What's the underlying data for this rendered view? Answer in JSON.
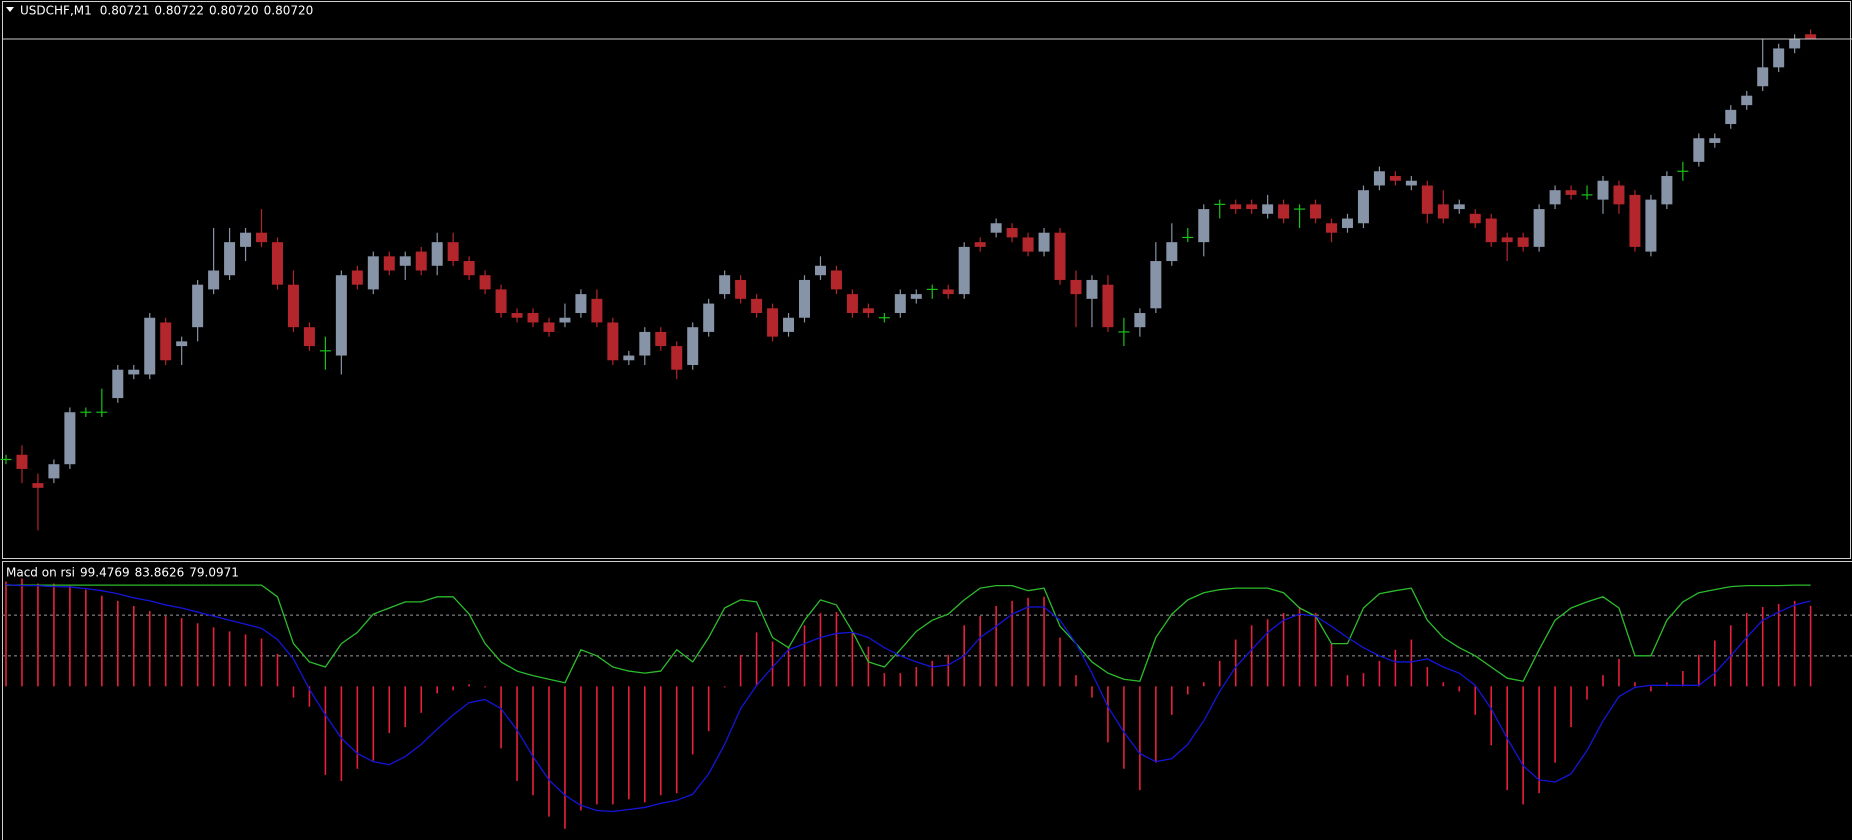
{
  "chart_data": [
    {
      "type": "candlestick",
      "title": "USDCHF,M1",
      "header_values": [
        "0.80721",
        "0.80722",
        "0.80720",
        "0.80720"
      ],
      "open": [
        0.80631,
        0.80632,
        0.80626,
        0.80627,
        0.8063,
        0.80641,
        0.80641,
        0.80644,
        0.80649,
        0.80649,
        0.8066,
        0.80655,
        0.80659,
        0.80667,
        0.8067,
        0.80676,
        0.80679,
        0.80677,
        0.80668,
        0.80659,
        0.80654,
        0.80653,
        0.80671,
        0.80667,
        0.80674,
        0.80672,
        0.80675,
        0.80672,
        0.80677,
        0.80673,
        0.8067,
        0.80667,
        0.80662,
        0.80662,
        0.8066,
        0.8066,
        0.80662,
        0.80665,
        0.8066,
        0.80652,
        0.80653,
        0.80658,
        0.80655,
        0.80651,
        0.80658,
        0.80666,
        0.80669,
        0.80665,
        0.80663,
        0.80658,
        0.80661,
        0.8067,
        0.80671,
        0.80666,
        0.80663,
        0.80661,
        0.80662,
        0.80665,
        0.80667,
        0.80667,
        0.80666,
        0.80677,
        0.80679,
        0.8068,
        0.80678,
        0.80675,
        0.80679,
        0.80669,
        0.80665,
        0.80668,
        0.80658,
        0.80659,
        0.80663,
        0.80673,
        0.80678,
        0.80677,
        0.80685,
        0.80685,
        0.80685,
        0.80683,
        0.80685,
        0.80684,
        0.80685,
        0.80681,
        0.8068,
        0.80681,
        0.80689,
        0.80691,
        0.80689,
        0.80689,
        0.80685,
        0.80684,
        0.80683,
        0.80682,
        0.80678,
        0.80678,
        0.80676,
        0.80685,
        0.80688,
        0.80687,
        0.80686,
        0.80689,
        0.80687,
        0.80675,
        0.80685,
        0.80692,
        0.80694,
        0.80698,
        0.80702,
        0.80706,
        0.8071,
        0.80714,
        0.80718,
        0.80721
      ],
      "high": [
        0.80632,
        0.80634,
        0.80628,
        0.80631,
        0.80642,
        0.80642,
        0.80646,
        0.80651,
        0.80651,
        0.80662,
        0.80661,
        0.80657,
        0.80669,
        0.8068,
        0.8068,
        0.8068,
        0.80684,
        0.80678,
        0.80671,
        0.8066,
        0.80657,
        0.80671,
        0.80672,
        0.80675,
        0.80675,
        0.80675,
        0.80676,
        0.80679,
        0.80679,
        0.80674,
        0.80671,
        0.80668,
        0.80663,
        0.80663,
        0.80661,
        0.80664,
        0.80667,
        0.80667,
        0.80661,
        0.80654,
        0.80659,
        0.80659,
        0.80656,
        0.8066,
        0.80665,
        0.80671,
        0.8067,
        0.80666,
        0.80664,
        0.80662,
        0.8067,
        0.80674,
        0.80672,
        0.80667,
        0.80664,
        0.80662,
        0.80667,
        0.80667,
        0.80668,
        0.80668,
        0.80677,
        0.80678,
        0.80682,
        0.80681,
        0.80679,
        0.8068,
        0.8068,
        0.80671,
        0.8067,
        0.8067,
        0.80661,
        0.80663,
        0.80677,
        0.80681,
        0.8068,
        0.80685,
        0.80686,
        0.80686,
        0.80686,
        0.80687,
        0.80686,
        0.80685,
        0.80686,
        0.80682,
        0.80683,
        0.80689,
        0.80693,
        0.80692,
        0.80691,
        0.8069,
        0.80688,
        0.80686,
        0.80684,
        0.80683,
        0.80679,
        0.80679,
        0.80685,
        0.80689,
        0.80689,
        0.80689,
        0.80691,
        0.8069,
        0.80688,
        0.80687,
        0.80692,
        0.80694,
        0.807,
        0.807,
        0.80706,
        0.80709,
        0.8072,
        0.80719,
        0.80721,
        0.80722
      ],
      "low": [
        0.8063,
        0.80626,
        0.80616,
        0.80626,
        0.80629,
        0.8064,
        0.8064,
        0.80643,
        0.80648,
        0.80648,
        0.80651,
        0.80651,
        0.80656,
        0.80666,
        0.80669,
        0.80673,
        0.80676,
        0.80667,
        0.80658,
        0.80654,
        0.8065,
        0.80649,
        0.80667,
        0.80666,
        0.8067,
        0.80669,
        0.8067,
        0.8067,
        0.80672,
        0.80669,
        0.80666,
        0.80661,
        0.8066,
        0.80659,
        0.80657,
        0.80659,
        0.80661,
        0.80659,
        0.80651,
        0.80651,
        0.80651,
        0.80654,
        0.80648,
        0.8065,
        0.80657,
        0.80665,
        0.80664,
        0.80661,
        0.80656,
        0.80657,
        0.8066,
        0.80669,
        0.80666,
        0.80661,
        0.80661,
        0.8066,
        0.80661,
        0.80664,
        0.80665,
        0.80665,
        0.80665,
        0.80675,
        0.80678,
        0.80677,
        0.80674,
        0.80674,
        0.80668,
        0.80659,
        0.80659,
        0.80658,
        0.80655,
        0.80657,
        0.80662,
        0.80672,
        0.80677,
        0.80674,
        0.80682,
        0.80683,
        0.80683,
        0.80682,
        0.80681,
        0.8068,
        0.80681,
        0.80677,
        0.80679,
        0.8068,
        0.80688,
        0.80689,
        0.80688,
        0.80681,
        0.80681,
        0.80683,
        0.8068,
        0.80676,
        0.80673,
        0.80675,
        0.80675,
        0.80684,
        0.80686,
        0.80686,
        0.80683,
        0.80683,
        0.80675,
        0.80674,
        0.80684,
        0.8069,
        0.80693,
        0.80697,
        0.80701,
        0.80705,
        0.80709,
        0.80713,
        0.80717,
        0.8072
      ],
      "close": [
        0.80631,
        0.80629,
        0.80625,
        0.8063,
        0.80641,
        0.80641,
        0.80641,
        0.8065,
        0.8065,
        0.80661,
        0.80652,
        0.80656,
        0.80668,
        0.80671,
        0.80677,
        0.80679,
        0.80677,
        0.80668,
        0.80659,
        0.80655,
        0.80654,
        0.8067,
        0.80668,
        0.80674,
        0.80671,
        0.80674,
        0.80671,
        0.80677,
        0.80673,
        0.8067,
        0.80667,
        0.80662,
        0.80661,
        0.8066,
        0.80658,
        0.80661,
        0.80666,
        0.8066,
        0.80652,
        0.80653,
        0.80658,
        0.80655,
        0.8065,
        0.80659,
        0.80664,
        0.8067,
        0.80665,
        0.80662,
        0.80657,
        0.80661,
        0.80669,
        0.80672,
        0.80667,
        0.80662,
        0.80662,
        0.80661,
        0.80666,
        0.80666,
        0.80667,
        0.80666,
        0.80676,
        0.80676,
        0.80681,
        0.80678,
        0.80675,
        0.80679,
        0.80669,
        0.80666,
        0.80669,
        0.80659,
        0.80658,
        0.80662,
        0.80673,
        0.80677,
        0.80678,
        0.80684,
        0.80685,
        0.80684,
        0.80684,
        0.80685,
        0.80682,
        0.80684,
        0.80682,
        0.80679,
        0.80682,
        0.80688,
        0.80692,
        0.8069,
        0.8069,
        0.80683,
        0.80682,
        0.80685,
        0.80681,
        0.80677,
        0.80677,
        0.80676,
        0.80684,
        0.80688,
        0.80687,
        0.80687,
        0.8069,
        0.80685,
        0.80676,
        0.80686,
        0.80691,
        0.80692,
        0.80699,
        0.80699,
        0.80705,
        0.80708,
        0.80714,
        0.80718,
        0.8072,
        0.8072
      ],
      "ylim": [
        0.8061,
        0.80728
      ],
      "colors": {
        "up": "#8793a6",
        "down": "#b3262b",
        "doji": "#19c219",
        "price_line": "#c8c8c8"
      },
      "price_line": true
    },
    {
      "type": "macd",
      "title": "Macd on rsi",
      "ylim": [
        -151,
        122
      ],
      "levels": [
        70,
        30
      ],
      "series": [
        {
          "color": "#2dbb2d",
          "style": "line",
          "values": [
            99.5,
            99.5,
            99.5,
            99.5,
            99.5,
            99.5,
            99.5,
            99.5,
            99.5,
            99.5,
            99.5,
            99.5,
            99.5,
            99.5,
            99.5,
            99.5,
            99.5,
            88,
            42,
            24,
            19,
            42,
            53,
            71,
            77,
            83,
            83,
            88,
            88,
            71,
            42,
            24,
            15,
            10.5,
            7,
            3.5,
            36,
            30,
            19,
            15,
            13,
            15,
            36,
            24,
            48,
            77,
            85,
            83,
            48,
            38,
            65,
            85,
            80,
            54,
            24,
            19,
            36,
            54,
            65,
            71,
            85,
            96.5,
            99,
            99,
            94,
            96.5,
            59,
            42,
            24,
            13,
            7,
            5,
            48,
            71,
            85,
            92,
            95,
            96.5,
            96.5,
            96.5,
            92,
            77,
            69,
            42,
            42,
            77,
            91,
            94,
            96.5,
            65,
            48,
            38,
            30,
            19,
            8,
            5,
            36,
            65,
            77,
            83,
            88,
            77,
            30,
            30,
            65,
            83,
            92,
            95,
            98,
            99,
            99,
            99,
            99.5,
            99.4769
          ]
        },
        {
          "color": "#1515d8",
          "style": "line",
          "values": [
            100,
            99,
            99,
            98,
            97.7,
            96,
            94,
            91,
            87,
            84,
            80,
            77,
            73,
            69,
            65,
            61,
            57,
            46,
            27,
            -3,
            -28,
            -51,
            -66,
            -74,
            -77,
            -69,
            -57,
            -42,
            -28,
            -16,
            -13,
            -22,
            -43,
            -69,
            -92,
            -107,
            -117,
            -122,
            -123,
            -121,
            -119,
            -115,
            -112,
            -106,
            -86,
            -57,
            -22,
            1,
            19,
            36,
            42,
            48,
            52,
            53,
            48,
            38,
            30,
            24,
            19,
            21,
            30,
            48,
            59,
            71,
            78,
            78,
            65,
            42,
            13,
            -20,
            -45,
            -66,
            -74,
            -71,
            -57,
            -34,
            -5,
            19,
            36,
            53,
            65,
            71,
            69,
            59,
            48,
            38,
            30,
            24,
            24,
            27,
            19,
            13,
            1,
            -22,
            -51,
            -78,
            -92,
            -94,
            -86,
            -63,
            -34,
            -10,
            -1,
            1,
            1,
            1,
            1,
            13,
            30,
            48,
            65,
            73,
            80,
            83.8626
          ]
        },
        {
          "color": "#e8203a",
          "style": "histogram",
          "values": [
            103,
            106,
            101,
            101,
            99,
            95,
            89,
            84,
            79,
            74,
            69,
            67,
            62,
            58,
            54,
            51,
            47,
            32,
            -11,
            -20,
            -87,
            -93,
            -81,
            -73,
            -46,
            -40,
            -26,
            -7,
            -4,
            2,
            -1,
            -61,
            -93,
            -107,
            -128,
            -140,
            -122,
            -116,
            -116,
            -111,
            -114,
            -107,
            -105,
            -67,
            -44,
            -1,
            31,
            53,
            44,
            39,
            60,
            72,
            73,
            54,
            39,
            13,
            13,
            19,
            25,
            31,
            60,
            69,
            79,
            84,
            87,
            88,
            48,
            11,
            -11,
            -55,
            -81,
            -102,
            -75,
            -28,
            -8,
            4,
            25,
            46,
            60,
            66,
            72,
            78,
            72,
            42,
            11,
            13,
            25,
            36,
            46,
            19,
            4,
            -5,
            -28,
            -58,
            -102,
            -116,
            -105,
            -75,
            -40,
            -13,
            11,
            27,
            4,
            -5,
            4,
            15,
            31,
            45,
            60,
            72,
            78,
            81,
            84,
            79.0971
          ]
        }
      ]
    }
  ]
}
